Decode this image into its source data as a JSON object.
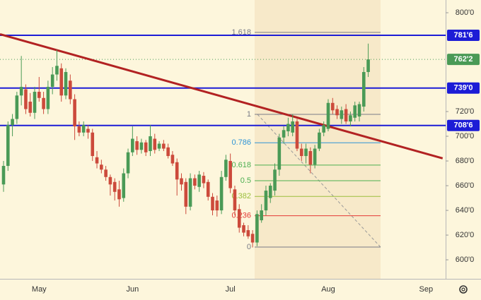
{
  "chart_data": {
    "type": "candlestick",
    "categories": [
      null,
      null,
      null,
      null,
      null,
      null,
      null,
      null,
      "May",
      null,
      null,
      null,
      null,
      null,
      null,
      null,
      null,
      null,
      null,
      null,
      null,
      null,
      null,
      null,
      null,
      null,
      null,
      null,
      null,
      "Jun",
      null,
      null,
      null,
      null,
      null,
      null,
      null,
      null,
      null,
      null,
      null,
      null,
      null,
      null,
      null,
      null,
      null,
      null,
      null,
      null,
      null,
      "Jul",
      null,
      null,
      null,
      null,
      null,
      null,
      null,
      null,
      null,
      null,
      null,
      null,
      null,
      null,
      null,
      null,
      null,
      null,
      null,
      null,
      null,
      "Aug",
      null,
      null,
      null,
      null,
      null,
      null,
      null,
      null,
      null,
      null,
      null,
      null,
      null,
      null,
      null,
      null,
      null,
      null,
      null,
      null,
      null,
      "Sep",
      null,
      null,
      null,
      null,
      null
    ],
    "open": [
      661,
      676,
      709,
      714,
      733,
      738,
      728,
      719,
      736,
      731,
      722,
      740,
      750,
      755,
      733,
      745,
      730,
      708,
      703,
      706,
      703,
      683,
      677,
      673,
      667,
      663,
      657,
      650,
      670,
      687,
      696,
      689,
      695,
      688,
      698,
      690,
      694,
      691,
      685,
      679,
      666,
      663,
      643,
      666,
      659,
      668,
      663,
      651,
      648,
      640,
      667,
      680,
      657,
      641,
      628,
      624,
      621,
      614,
      632,
      640,
      650,
      656,
      673,
      699,
      704,
      703,
      712,
      690,
      684,
      688,
      677,
      690,
      703,
      706,
      727,
      722,
      714,
      722,
      712,
      715,
      716,
      724,
      752,
      null,
      null,
      null,
      null,
      null,
      null,
      null,
      null,
      null,
      null,
      null,
      null,
      null,
      null,
      null,
      null,
      null,
      null
    ],
    "high": [
      680,
      712,
      718,
      736,
      765,
      742,
      735,
      740,
      748,
      736,
      745,
      756,
      770,
      759,
      755,
      750,
      734,
      712,
      712,
      709,
      706,
      688,
      681,
      676,
      669,
      666,
      664,
      674,
      690,
      708,
      700,
      698,
      697,
      709,
      702,
      696,
      697,
      694,
      688,
      682,
      670,
      666,
      670,
      669,
      672,
      671,
      665,
      654,
      652,
      672,
      685,
      686,
      660,
      645,
      630,
      628,
      624,
      640,
      645,
      660,
      662,
      678,
      702,
      708,
      715,
      718,
      714,
      694,
      694,
      691,
      693,
      706,
      712,
      730,
      731,
      725,
      724,
      726,
      720,
      728,
      728,
      756,
      775,
      null,
      null,
      null,
      null,
      null,
      null,
      null,
      null,
      null,
      null,
      null,
      null,
      null,
      null,
      null,
      null,
      null,
      null
    ],
    "low": [
      655,
      672,
      700,
      710,
      725,
      718,
      716,
      714,
      728,
      718,
      718,
      734,
      745,
      728,
      730,
      726,
      697,
      700,
      700,
      698,
      680,
      674,
      670,
      664,
      652,
      648,
      643,
      647,
      666,
      684,
      685,
      686,
      684,
      684,
      686,
      688,
      688,
      682,
      676,
      652,
      656,
      637,
      640,
      657,
      655,
      658,
      648,
      636,
      635,
      637,
      664,
      654,
      636,
      622,
      619,
      617,
      610,
      611,
      630,
      636,
      646,
      652,
      668,
      694,
      700,
      700,
      688,
      680,
      678,
      670,
      674,
      688,
      700,
      704,
      718,
      714,
      710,
      710,
      708,
      712,
      712,
      720,
      748,
      null,
      null,
      null,
      null,
      null,
      null,
      null,
      null,
      null,
      null,
      null,
      null,
      null,
      null,
      null,
      null,
      null,
      null
    ],
    "close": [
      676,
      709,
      714,
      733,
      740,
      722,
      719,
      736,
      731,
      722,
      740,
      750,
      757,
      733,
      752,
      730,
      708,
      703,
      709,
      703,
      684,
      678,
      673,
      667,
      661,
      655,
      649,
      670,
      687,
      698,
      689,
      695,
      687,
      700,
      689,
      694,
      690,
      684,
      678,
      665,
      661,
      643,
      666,
      660,
      669,
      662,
      651,
      640,
      640,
      667,
      681,
      658,
      640,
      626,
      622,
      619,
      614,
      637,
      640,
      656,
      660,
      673,
      699,
      705,
      710,
      712,
      690,
      684,
      690,
      677,
      690,
      703,
      709,
      727,
      721,
      717,
      721,
      712,
      717,
      725,
      726,
      752,
      762.25,
      null,
      null,
      null,
      null,
      null,
      null,
      null,
      null,
      null,
      null,
      null,
      null,
      null,
      null,
      null,
      null,
      null,
      null
    ],
    "up_color": "#4a9a56",
    "down_color": "#cc4a3b",
    "ylim": [
      584.6,
      810.3
    ],
    "yticks": [
      {
        "value": 600,
        "label": "600'0"
      },
      {
        "value": 620,
        "label": "620'0"
      },
      {
        "value": 640,
        "label": "640'0"
      },
      {
        "value": 660,
        "label": "660'0"
      },
      {
        "value": 680,
        "label": "680'0"
      },
      {
        "value": 700,
        "label": "700'0"
      },
      {
        "value": 720,
        "label": "720'0"
      },
      {
        "value": 800,
        "label": "800'0"
      }
    ],
    "hlines": {
      "values": [
        781.75,
        739,
        708.75
      ],
      "value_labels": [
        "781'6",
        "739'0",
        "708'6"
      ],
      "color": "#1c1cd6"
    },
    "last_price": {
      "value": 762.25,
      "label": "762'2",
      "color": "#4a9a56"
    },
    "trendline": {
      "values": [
        782.6,
        682.1
      ],
      "color": "#b22222"
    },
    "fib": {
      "low": 610.3,
      "high": 717.7,
      "levels": [
        0,
        0.236,
        0.382,
        0.5,
        0.618,
        0.786,
        1,
        1.618
      ],
      "colors": [
        "#787b86",
        "#e53935",
        "#9bbf3c",
        "#4caf50",
        "#4caf50",
        "#2e94d6",
        "#787b86",
        "#787b86"
      ]
    }
  }
}
